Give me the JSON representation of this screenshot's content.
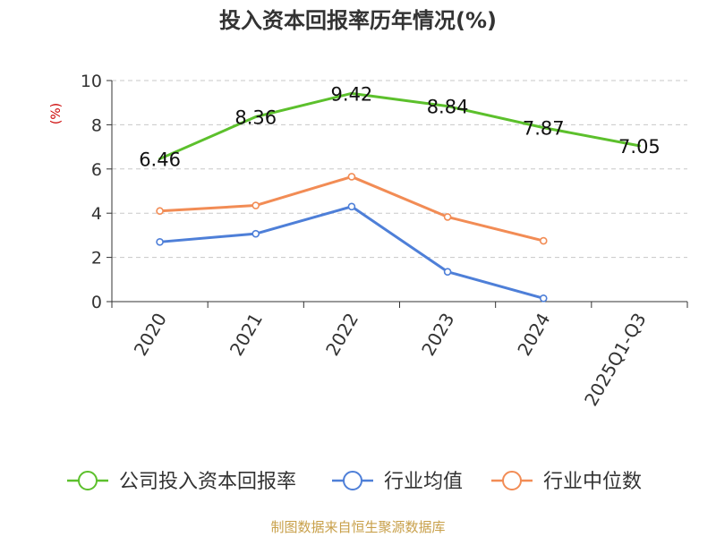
{
  "chart_data": {
    "type": "line",
    "title": "投入资本回报率历年情况(%)",
    "ylabel": "(%)",
    "xlabel": "",
    "ylim": [
      0,
      10
    ],
    "yticks": [
      0,
      2,
      4,
      6,
      8,
      10
    ],
    "grid": "horizontal-dashed",
    "categories": [
      "2020",
      "2021",
      "2022",
      "2023",
      "2024",
      "2025Q1-Q3"
    ],
    "series": [
      {
        "name": "公司投入资本回报率",
        "color": "#5cc02c",
        "values": [
          6.46,
          8.36,
          9.42,
          8.84,
          7.87,
          7.05
        ],
        "labels": [
          "6.46",
          "8.36",
          "9.42",
          "8.84",
          "7.87",
          "7.05"
        ],
        "show_labels": true,
        "show_markers": false
      },
      {
        "name": "行业均值",
        "color": "#4e7fd8",
        "values": [
          2.7,
          3.07,
          4.3,
          1.35,
          0.15,
          null
        ],
        "show_labels": false,
        "show_markers": true
      },
      {
        "name": "行业中位数",
        "color": "#f28c55",
        "values": [
          4.1,
          4.35,
          5.65,
          3.83,
          2.75,
          null
        ],
        "show_labels": false,
        "show_markers": true
      }
    ],
    "legend_position": "bottom",
    "source": "制图数据来自恒生聚源数据库"
  }
}
